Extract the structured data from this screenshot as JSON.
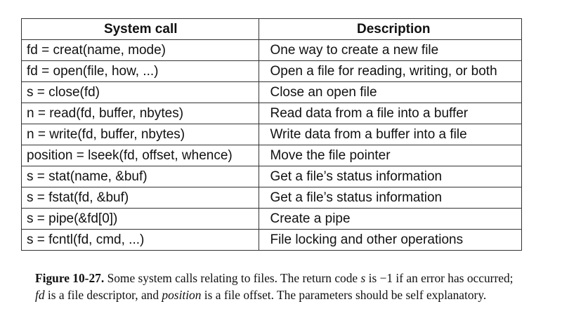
{
  "table": {
    "headers": [
      "System call",
      "Description"
    ],
    "rows": [
      [
        "fd = creat(name, mode)",
        "One way to create a new file"
      ],
      [
        "fd = open(file, how, ...)",
        "Open a file for reading, writing, or both"
      ],
      [
        "s = close(fd)",
        "Close an open file"
      ],
      [
        "n = read(fd, buffer, nbytes)",
        "Read data from a file into a buffer"
      ],
      [
        "n = write(fd, buffer, nbytes)",
        "Write data from a buffer into a file"
      ],
      [
        "position = lseek(fd, offset, whence)",
        "Move the file pointer"
      ],
      [
        "s = stat(name, &buf)",
        "Get a file’s status information"
      ],
      [
        "s = fstat(fd, &buf)",
        "Get a file’s status information"
      ],
      [
        "s = pipe(&fd[0])",
        "Create a pipe"
      ],
      [
        "s = fcntl(fd, cmd, ...)",
        "File locking and other operations"
      ]
    ]
  },
  "caption": {
    "label": "Figure 10-27.",
    "t1": " Some system calls relating to files. The return code ",
    "v1": "s",
    "t2": " is −1 if an error has occurred; ",
    "v2": "fd",
    "t3": " is a file descriptor, and ",
    "v3": "position",
    "t4": " is a file offset. The parameters should be self explanatory."
  }
}
